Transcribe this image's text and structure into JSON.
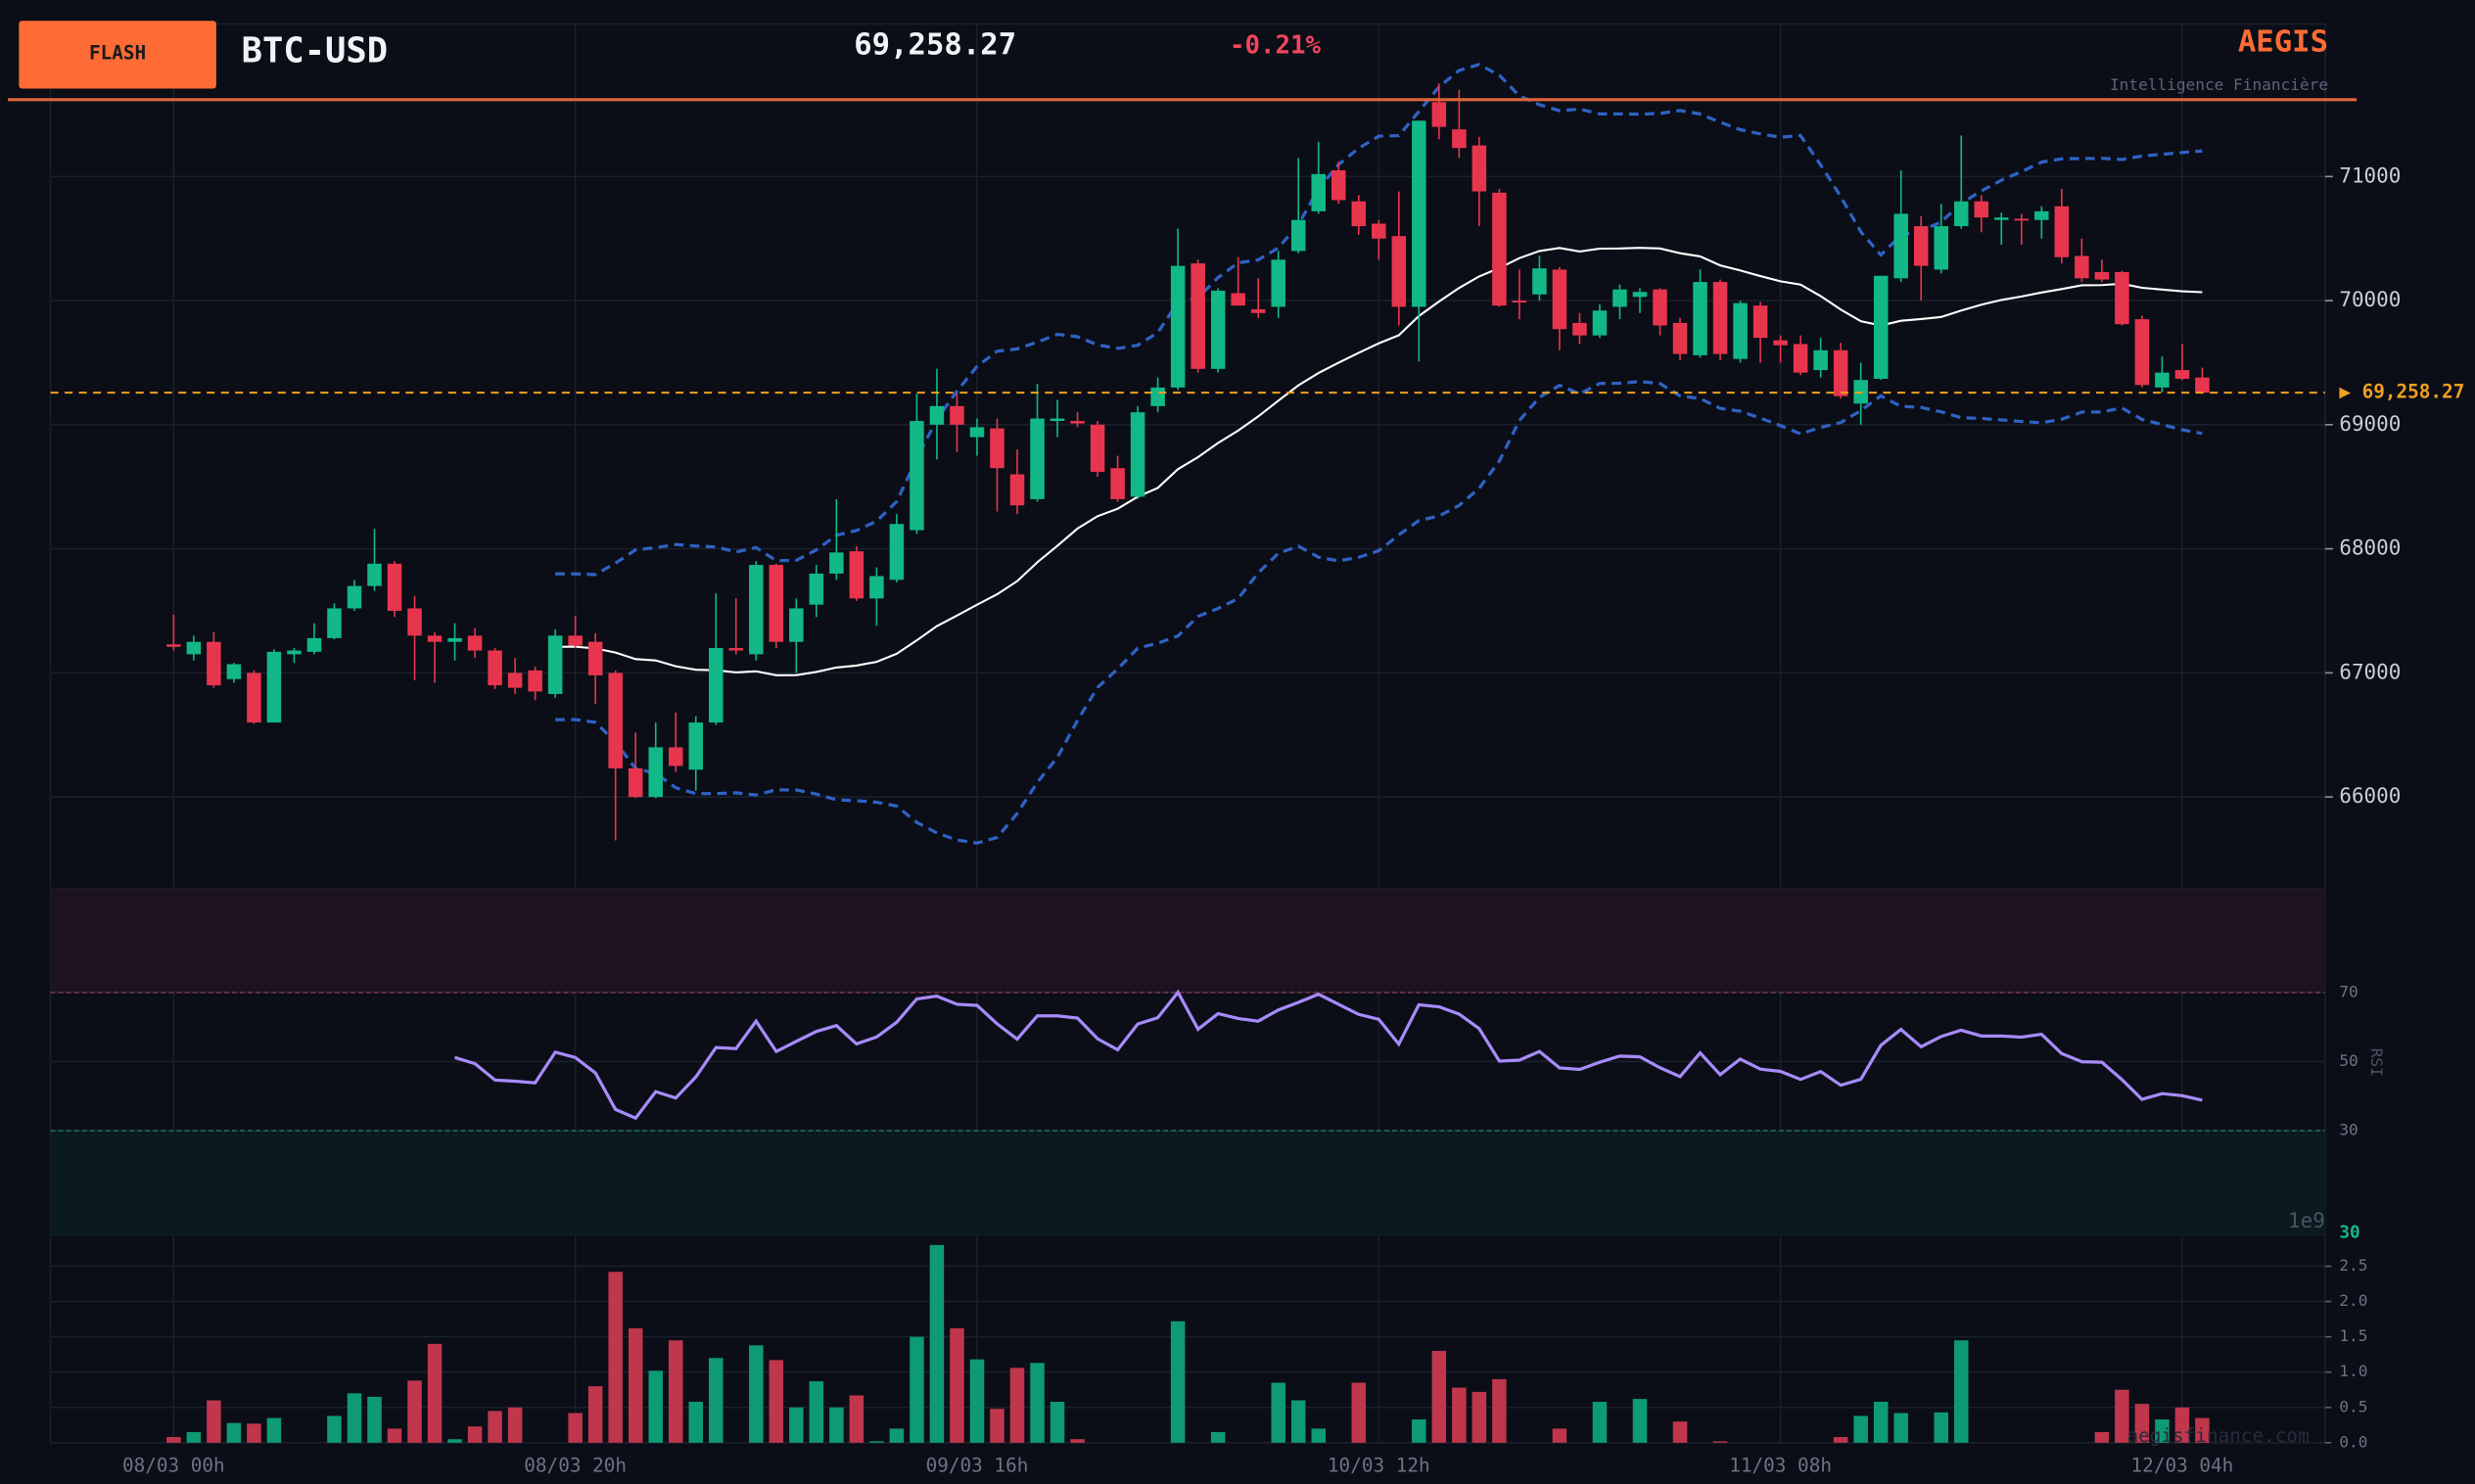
{
  "header": {
    "badge": "FLASH",
    "symbol": "BTC-USD",
    "price": "69,258.27",
    "change": "-0.21%",
    "brand": "AEGIS",
    "tagline": "Intelligence Financière",
    "watermark": "aegisfinance.com"
  },
  "chart_data": [
    {
      "type": "candlestick",
      "ylim": [
        65260,
        72230
      ],
      "yticks": [
        66000,
        67000,
        68000,
        69000,
        70000,
        71000
      ],
      "grid": true,
      "up_color": "#12b886",
      "down_color": "#e8354e",
      "sma_period": 20,
      "bb_std": 2,
      "sma_color": "#ffffff",
      "bb_color": "#2f62c4",
      "price_line": {
        "value": 69258.27,
        "label": "▶ 69,258.27",
        "color": "#f0a020"
      },
      "x_labels": [
        {
          "value": 0,
          "label": "08/03 00h"
        },
        {
          "value": 20,
          "label": "08/03 20h"
        },
        {
          "value": 40,
          "label": "09/03 16h"
        },
        {
          "value": 60,
          "label": "10/03 12h"
        },
        {
          "value": 80,
          "label": "11/03 08h"
        },
        {
          "value": 100,
          "label": "12/03 04h"
        }
      ],
      "candles": [
        [
          67230,
          67470,
          67180,
          67210
        ],
        [
          67150,
          67300,
          67100,
          67250
        ],
        [
          67250,
          67330,
          66880,
          66900
        ],
        [
          66950,
          67080,
          66920,
          67070
        ],
        [
          67000,
          67020,
          66590,
          66600
        ],
        [
          66600,
          67190,
          66600,
          67170
        ],
        [
          67150,
          67200,
          67080,
          67180
        ],
        [
          67170,
          67400,
          67150,
          67280
        ],
        [
          67280,
          67560,
          67270,
          67520
        ],
        [
          67520,
          67750,
          67500,
          67700
        ],
        [
          67700,
          68160,
          67660,
          67880
        ],
        [
          67880,
          67900,
          67450,
          67500
        ],
        [
          67520,
          67620,
          66940,
          67300
        ],
        [
          67300,
          67330,
          66920,
          67250
        ],
        [
          67250,
          67400,
          67100,
          67280
        ],
        [
          67300,
          67360,
          67120,
          67180
        ],
        [
          67180,
          67200,
          66870,
          66900
        ],
        [
          67000,
          67120,
          66830,
          66880
        ],
        [
          67020,
          67050,
          66780,
          66850
        ],
        [
          66830,
          67350,
          66800,
          67300
        ],
        [
          67300,
          67460,
          67200,
          67220
        ],
        [
          67250,
          67320,
          66750,
          66980
        ],
        [
          67000,
          67020,
          65650,
          66230
        ],
        [
          66230,
          66520,
          65990,
          66000
        ],
        [
          66000,
          66600,
          65990,
          66400
        ],
        [
          66400,
          66680,
          66200,
          66250
        ],
        [
          66220,
          66650,
          66050,
          66600
        ],
        [
          66600,
          67640,
          66580,
          67200
        ],
        [
          67200,
          67600,
          67150,
          67180
        ],
        [
          67150,
          67900,
          67100,
          67870
        ],
        [
          67870,
          67880,
          67200,
          67250
        ],
        [
          67250,
          67600,
          67000,
          67520
        ],
        [
          67550,
          67870,
          67450,
          67800
        ],
        [
          67800,
          68400,
          67750,
          67970
        ],
        [
          67980,
          68020,
          67580,
          67600
        ],
        [
          67600,
          67850,
          67380,
          67780
        ],
        [
          67750,
          68280,
          67730,
          68200
        ],
        [
          68150,
          69250,
          68120,
          69030
        ],
        [
          69000,
          69450,
          68720,
          69150
        ],
        [
          69150,
          69250,
          68780,
          69000
        ],
        [
          68900,
          69050,
          68750,
          68980
        ],
        [
          68970,
          69050,
          68300,
          68650
        ],
        [
          68600,
          68800,
          68280,
          68350
        ],
        [
          68400,
          69330,
          68380,
          69050
        ],
        [
          69030,
          69200,
          68900,
          69050
        ],
        [
          69030,
          69100,
          68980,
          69010
        ],
        [
          69000,
          69030,
          68580,
          68620
        ],
        [
          68650,
          68750,
          68380,
          68400
        ],
        [
          68420,
          69150,
          68400,
          69100
        ],
        [
          69150,
          69380,
          69100,
          69300
        ],
        [
          69300,
          70580,
          69280,
          70280
        ],
        [
          70300,
          70330,
          69420,
          69450
        ],
        [
          69450,
          70100,
          69420,
          70080
        ],
        [
          70060,
          70350,
          69960,
          69960
        ],
        [
          69930,
          70180,
          69860,
          69900
        ],
        [
          69950,
          70400,
          69860,
          70330
        ],
        [
          70400,
          71150,
          70380,
          70650
        ],
        [
          70720,
          71280,
          70700,
          71020
        ],
        [
          71050,
          71120,
          70780,
          70810
        ],
        [
          70800,
          70850,
          70530,
          70600
        ],
        [
          70620,
          70650,
          70330,
          70500
        ],
        [
          70520,
          70880,
          69800,
          69950
        ],
        [
          69950,
          71450,
          69510,
          71450
        ],
        [
          71600,
          71750,
          71300,
          71400
        ],
        [
          71380,
          71700,
          71150,
          71230
        ],
        [
          71250,
          71320,
          70600,
          70880
        ],
        [
          70870,
          70900,
          69950,
          69960
        ],
        [
          70000,
          70250,
          69850,
          69990
        ],
        [
          70050,
          70360,
          70000,
          70260
        ],
        [
          70250,
          70270,
          69600,
          69770
        ],
        [
          69820,
          69900,
          69650,
          69720
        ],
        [
          69720,
          69970,
          69700,
          69920
        ],
        [
          69950,
          70130,
          69850,
          70090
        ],
        [
          70030,
          70100,
          69900,
          70070
        ],
        [
          70090,
          70100,
          69720,
          69800
        ],
        [
          69820,
          69860,
          69520,
          69570
        ],
        [
          69560,
          70250,
          69540,
          70150
        ],
        [
          70150,
          70170,
          69520,
          69570
        ],
        [
          69530,
          70000,
          69500,
          69980
        ],
        [
          69960,
          69990,
          69500,
          69700
        ],
        [
          69680,
          69720,
          69500,
          69640
        ],
        [
          69650,
          69720,
          69400,
          69420
        ],
        [
          69440,
          69700,
          69380,
          69600
        ],
        [
          69600,
          69660,
          69210,
          69230
        ],
        [
          69170,
          69500,
          69000,
          69360
        ],
        [
          69370,
          70200,
          69360,
          70200
        ],
        [
          70180,
          71050,
          70150,
          70700
        ],
        [
          70600,
          70680,
          70000,
          70280
        ],
        [
          70250,
          70780,
          70220,
          70600
        ],
        [
          70600,
          71330,
          70580,
          70800
        ],
        [
          70800,
          70850,
          70550,
          70670
        ],
        [
          70650,
          70710,
          70450,
          70670
        ],
        [
          70660,
          70700,
          70450,
          70650
        ],
        [
          70650,
          70760,
          70500,
          70720
        ],
        [
          70760,
          70900,
          70300,
          70350
        ],
        [
          70360,
          70500,
          70150,
          70180
        ],
        [
          70230,
          70330,
          70150,
          70170
        ],
        [
          70230,
          70240,
          69800,
          69810
        ],
        [
          69850,
          69880,
          69300,
          69320
        ],
        [
          69300,
          69550,
          69260,
          69420
        ],
        [
          69440,
          69650,
          69360,
          69370
        ],
        [
          69380,
          69460,
          69250,
          69258.27
        ]
      ]
    },
    {
      "type": "rsi",
      "ylabel": "RSI",
      "period": 14,
      "ylim": [
        0,
        100
      ],
      "yticks": [
        30,
        50,
        70
      ],
      "overbought": 70,
      "oversold": 30,
      "color": "#a78bfa",
      "last_label": "30"
    },
    {
      "type": "bar",
      "offset_label": "1e9",
      "ylim": [
        0,
        2.95
      ],
      "yticks": [
        {
          "value": 0,
          "label": "0.0"
        },
        {
          "value": 0.5,
          "label": "0.5"
        },
        {
          "value": 1,
          "label": "1.0"
        },
        {
          "value": 1.5,
          "label": "1.5"
        },
        {
          "value": 2,
          "label": "2.0"
        },
        {
          "value": 2.5,
          "label": "2.5"
        }
      ],
      "values": [
        0.08,
        0.15,
        0.6,
        0.28,
        0.27,
        0.35,
        0,
        0,
        0.38,
        0.7,
        0.65,
        0.2,
        0.88,
        1.4,
        0.05,
        0.23,
        0.45,
        0.5,
        0,
        0,
        0.42,
        0.8,
        2.42,
        1.62,
        1.02,
        1.45,
        0.58,
        1.2,
        0,
        1.38,
        1.17,
        0.5,
        0.87,
        0.5,
        0.67,
        0.02,
        0.2,
        1.5,
        2.8,
        1.62,
        1.18,
        0.48,
        1.06,
        1.13,
        0.58,
        0.05,
        0,
        0,
        0,
        0,
        1.72,
        0,
        0.15,
        0,
        0,
        0.85,
        0.6,
        0.2,
        0,
        0.85,
        0,
        0,
        0.33,
        1.3,
        0.78,
        0.72,
        0.9,
        0,
        0,
        0.2,
        0,
        0.58,
        0,
        0.62,
        0,
        0.3,
        0,
        0.02,
        0,
        0,
        0,
        0,
        0,
        0.08,
        0.38,
        0.58,
        0.42,
        0,
        0.43,
        1.45,
        0,
        0,
        0,
        0,
        0,
        0,
        0.15,
        0.75,
        0.55,
        0.33,
        0.5,
        0.35
      ]
    }
  ]
}
